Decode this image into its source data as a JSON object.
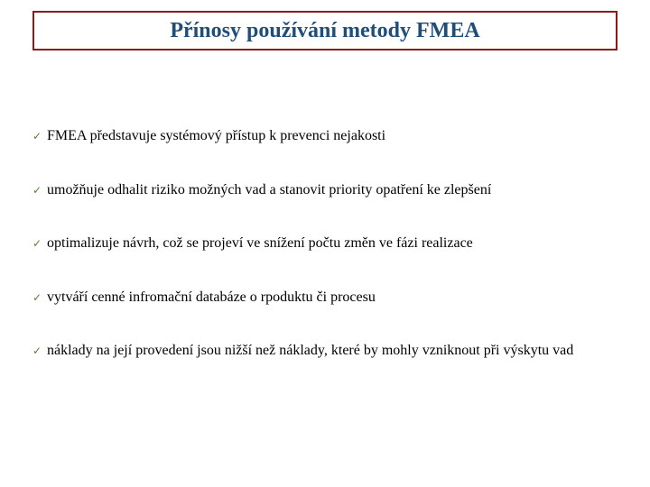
{
  "title": {
    "text": "Přínosy používání metody FMEA",
    "color": "#1f4e79",
    "border_color": "#8b1a1a",
    "fontsize": 24
  },
  "bullets": {
    "check_color": "#538135",
    "text_color": "#000000",
    "fontsize": 16,
    "items": [
      {
        "text": "FMEA představuje systémový přístup k prevenci nejakosti",
        "justify": false
      },
      {
        "text": "umožňuje odhalit riziko možných vad a stanovit priority opatření ke zlepšení",
        "justify": false
      },
      {
        "text": "optimalizuje návrh, což se projeví ve snížení počtu změn ve fázi realizace",
        "justify": false
      },
      {
        "text": "vytváří cenné infromační databáze o rpoduktu či procesu",
        "justify": false
      },
      {
        "text": " náklady na její provedení jsou nižší než náklady, které by mohly vzniknout při výskytu vad",
        "justify": true
      }
    ]
  },
  "background_color": "#ffffff"
}
